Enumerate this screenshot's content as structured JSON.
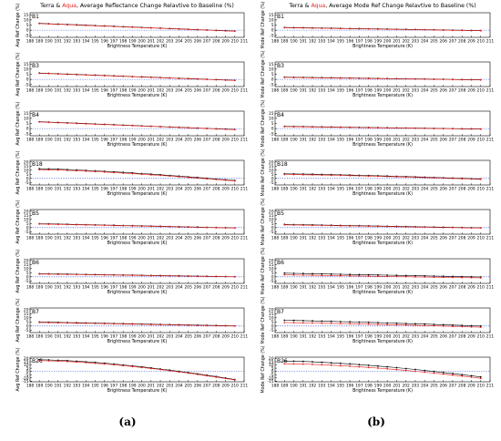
{
  "figure": {
    "panel_a_label": "(a)",
    "panel_b_label": "(b)"
  },
  "chart_data": [
    {
      "type": "line",
      "panel": "a",
      "title_parts": [
        {
          "text": "Terra",
          "color": "#000000"
        },
        {
          "text": " & ",
          "color": "#000000"
        },
        {
          "text": "Aqua",
          "color": "#e8201f"
        },
        {
          "text": ", Average Reflectance Change Relavtive to Baseline (%)",
          "color": "#000000"
        }
      ],
      "ylabel": "Avg Ref Change (%)",
      "xlabel": "Brightness Temperature (K)",
      "x_ticks": [
        188,
        189,
        190,
        191,
        192,
        193,
        194,
        195,
        196,
        197,
        198,
        199,
        200,
        201,
        202,
        203,
        204,
        205,
        206,
        207,
        208,
        209,
        210,
        211
      ],
      "xlim": [
        188,
        211
      ],
      "colors": {
        "terra": "#000000",
        "aqua": "#e8201f",
        "baseline": "#1f3fd0"
      },
      "subplots": [
        {
          "band": "B1",
          "yticks": [
            -5,
            0,
            5,
            10,
            15
          ],
          "ylim": [
            -7,
            17
          ],
          "start": 6.5,
          "end": -1.0,
          "shape": 1.0,
          "offset": 0.2
        },
        {
          "band": "B3",
          "yticks": [
            -5,
            0,
            5,
            10,
            15
          ],
          "ylim": [
            -7,
            17
          ],
          "start": 6.0,
          "end": -1.0,
          "shape": 1.0,
          "offset": 0.2
        },
        {
          "band": "B4",
          "yticks": [
            -5,
            0,
            5,
            10,
            15
          ],
          "ylim": [
            -7,
            17
          ],
          "start": 6.5,
          "end": -1.0,
          "shape": 1.0,
          "offset": 0.2
        },
        {
          "band": "B18",
          "yticks": [
            -5,
            0,
            5,
            10,
            15,
            20
          ],
          "ylim": [
            -8,
            22
          ],
          "start": 11.0,
          "end": -3.0,
          "shape": 1.4,
          "offset": 0.8
        },
        {
          "band": "B5",
          "yticks": [
            -5,
            0,
            5,
            10,
            15,
            20
          ],
          "ylim": [
            -8,
            22
          ],
          "start": 4.5,
          "end": -0.5,
          "shape": 1.0,
          "offset": 0.3
        },
        {
          "band": "B6",
          "yticks": [
            -5,
            0,
            5,
            10,
            15,
            20
          ],
          "ylim": [
            -8,
            22
          ],
          "start": 3.5,
          "end": 0.0,
          "shape": 1.0,
          "offset": 0.3
        },
        {
          "band": "B7",
          "yticks": [
            -5,
            0,
            5,
            10,
            15,
            20
          ],
          "ylim": [
            -8,
            22
          ],
          "start": 4.5,
          "end": 0.0,
          "shape": 1.0,
          "offset": 0.4
        },
        {
          "band": "B26",
          "yticks": [
            -15,
            -10,
            -5,
            0,
            5,
            10,
            15,
            20
          ],
          "ylim": [
            -16,
            22
          ],
          "start": 17.0,
          "end": -13.0,
          "shape": 1.6,
          "offset": 1.0
        }
      ]
    },
    {
      "type": "line",
      "panel": "b",
      "title_parts": [
        {
          "text": "Terra",
          "color": "#000000"
        },
        {
          "text": " & ",
          "color": "#000000"
        },
        {
          "text": "Aqua",
          "color": "#e8201f"
        },
        {
          "text": ", Average Mode Ref Change Relavtive to Baseline (%)",
          "color": "#000000"
        }
      ],
      "ylabel": "Mode Ref Change (%)",
      "xlabel": "Brightness Temperature (K)",
      "x_ticks": [
        188,
        189,
        190,
        191,
        192,
        193,
        194,
        195,
        196,
        197,
        198,
        199,
        200,
        201,
        202,
        203,
        204,
        205,
        206,
        207,
        208,
        209,
        210,
        211
      ],
      "xlim": [
        188,
        211
      ],
      "colors": {
        "terra": "#000000",
        "aqua": "#e8201f",
        "baseline": "#1f3fd0"
      },
      "subplots": [
        {
          "band": "B1",
          "yticks": [
            -5,
            0,
            5,
            10,
            15
          ],
          "ylim": [
            -7,
            17
          ],
          "start": 2.5,
          "end": -0.5,
          "shape": 1.0,
          "offset": 0.2
        },
        {
          "band": "B3",
          "yticks": [
            -5,
            0,
            5,
            10,
            15
          ],
          "ylim": [
            -7,
            17
          ],
          "start": 2.0,
          "end": -0.5,
          "shape": 1.0,
          "offset": 0.2
        },
        {
          "band": "B4",
          "yticks": [
            -5,
            0,
            5,
            10,
            15
          ],
          "ylim": [
            -7,
            17
          ],
          "start": 2.0,
          "end": -0.5,
          "shape": 1.0,
          "offset": 0.2
        },
        {
          "band": "B18",
          "yticks": [
            -5,
            0,
            5,
            10,
            15,
            20
          ],
          "ylim": [
            -8,
            22
          ],
          "start": 5.0,
          "end": -1.0,
          "shape": 1.3,
          "offset": 0.6
        },
        {
          "band": "B5",
          "yticks": [
            -5,
            0,
            5,
            10,
            15,
            20
          ],
          "ylim": [
            -8,
            22
          ],
          "start": 3.5,
          "end": -0.5,
          "shape": 1.0,
          "offset": 0.4
        },
        {
          "band": "B6",
          "yticks": [
            -5,
            0,
            5,
            10,
            15,
            20
          ],
          "ylim": [
            -8,
            22
          ],
          "start": 3.0,
          "end": -1.0,
          "shape": 1.0,
          "offset": 1.5
        },
        {
          "band": "B7",
          "yticks": [
            -5,
            0,
            5,
            10,
            15,
            20
          ],
          "ylim": [
            -8,
            22
          ],
          "start": 5.0,
          "end": -1.0,
          "shape": 1.2,
          "offset": 2.0
        },
        {
          "band": "B26",
          "yticks": [
            -15,
            -10,
            -5,
            0,
            5,
            10,
            15,
            20
          ],
          "ylim": [
            -16,
            22
          ],
          "start": 13.0,
          "end": -10.0,
          "shape": 1.6,
          "offset": 3.0
        }
      ]
    }
  ]
}
